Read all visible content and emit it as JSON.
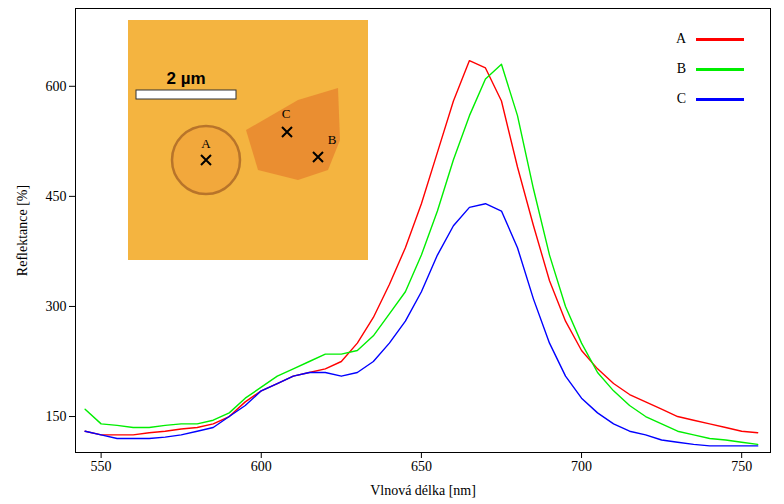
{
  "chart_data": {
    "type": "line",
    "x_label": "Vlnová délka [nm]",
    "y_label": "Reflektance [%]",
    "xlim": [
      542,
      759
    ],
    "xticks": [
      550,
      600,
      650,
      700,
      750
    ],
    "ylim": [
      101,
      706
    ],
    "yticks": [
      150,
      300,
      450,
      600
    ],
    "legend": "top-right",
    "inset": {
      "scale_bar_label": "2 µm"
    },
    "x": [
      545,
      550,
      555,
      560,
      565,
      570,
      575,
      580,
      585,
      590,
      595,
      600,
      605,
      610,
      615,
      620,
      625,
      630,
      635,
      640,
      645,
      650,
      655,
      660,
      665,
      670,
      675,
      680,
      685,
      690,
      695,
      700,
      705,
      710,
      715,
      720,
      725,
      730,
      735,
      740,
      745,
      750,
      755
    ],
    "series": [
      {
        "name": "A",
        "color": "#ff0000",
        "values": [
          130,
          125,
          125,
          125,
          128,
          130,
          133,
          135,
          140,
          150,
          170,
          185,
          195,
          205,
          210,
          215,
          225,
          250,
          285,
          330,
          380,
          440,
          510,
          580,
          635,
          625,
          580,
          490,
          410,
          335,
          280,
          240,
          215,
          195,
          180,
          170,
          160,
          150,
          145,
          140,
          135,
          130,
          128
        ]
      },
      {
        "name": "B",
        "color": "#00ee00",
        "values": [
          160,
          140,
          138,
          135,
          135,
          138,
          140,
          140,
          145,
          155,
          175,
          190,
          205,
          215,
          225,
          235,
          235,
          240,
          260,
          290,
          320,
          370,
          430,
          500,
          560,
          610,
          630,
          560,
          460,
          370,
          300,
          250,
          210,
          185,
          165,
          150,
          140,
          130,
          125,
          120,
          118,
          115,
          112
        ]
      },
      {
        "name": "C",
        "color": "#0000ff",
        "values": [
          130,
          125,
          120,
          120,
          120,
          122,
          125,
          130,
          135,
          150,
          165,
          185,
          195,
          205,
          210,
          210,
          205,
          210,
          225,
          250,
          280,
          320,
          370,
          410,
          435,
          440,
          430,
          380,
          310,
          250,
          205,
          175,
          155,
          140,
          130,
          125,
          118,
          115,
          112,
          110,
          110,
          110,
          110
        ]
      }
    ]
  }
}
